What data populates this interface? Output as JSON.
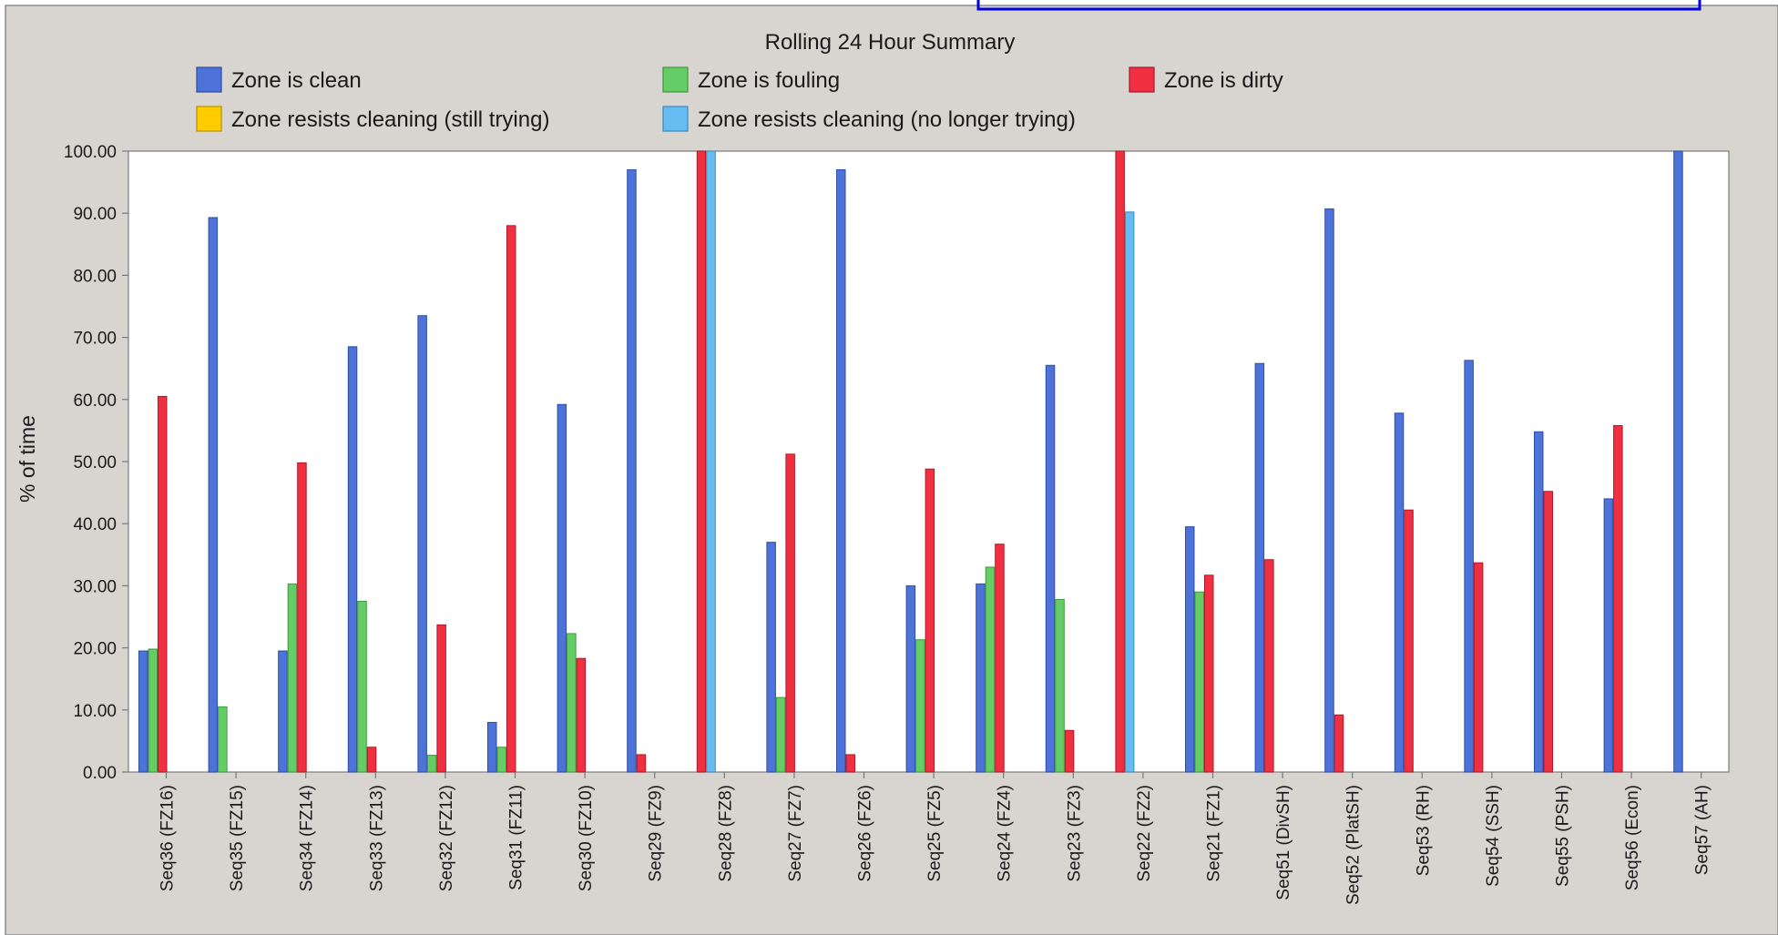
{
  "chart_data": {
    "type": "bar",
    "title": "Rolling 24 Hour Summary",
    "ylabel": "% of time",
    "xlabel": "",
    "ylim": [
      0,
      100
    ],
    "yticks": [
      "0.00",
      "10.00",
      "20.00",
      "30.00",
      "40.00",
      "50.00",
      "60.00",
      "70.00",
      "80.00",
      "90.00",
      "100.00"
    ],
    "grid": false,
    "legend_position": "top",
    "categories": [
      "Seq36 (FZ16)",
      "Seq35 (FZ15)",
      "Seq34 (FZ14)",
      "Seq33 (FZ13)",
      "Seq32 (FZ12)",
      "Seq31 (FZ11)",
      "Seq30 (FZ10)",
      "Seq29 (FZ9)",
      "Seq28 (FZ8)",
      "Seq27 (FZ7)",
      "Seq26 (FZ6)",
      "Seq25 (FZ5)",
      "Seq24 (FZ4)",
      "Seq23 (FZ3)",
      "Seq22 (FZ2)",
      "Seq21 (FZ1)",
      "Seq51 (DivSH)",
      "Seq52 (PlatSH)",
      "Seq53 (RH)",
      "Seq54 (SSH)",
      "Seq55 (PSH)",
      "Seq56 (Econ)",
      "Seq57 (AH)"
    ],
    "series": [
      {
        "name": "Zone is clean",
        "color": "#4d72d8",
        "stroke": "#2c4ea8",
        "values": [
          19.5,
          89.3,
          19.5,
          68.5,
          73.5,
          8.0,
          59.2,
          97.0,
          0,
          37.0,
          97.0,
          30.0,
          30.3,
          65.5,
          0,
          39.5,
          65.8,
          90.7,
          57.8,
          66.3,
          54.8,
          44.0,
          100.0
        ]
      },
      {
        "name": "Zone is fouling",
        "color": "#66cc66",
        "stroke": "#3e9a3e",
        "values": [
          19.8,
          10.5,
          30.3,
          27.5,
          2.7,
          4.0,
          22.3,
          0,
          0,
          12.0,
          0,
          21.3,
          33.0,
          27.8,
          0,
          29.0,
          0,
          0,
          0,
          0,
          0,
          0,
          0
        ]
      },
      {
        "name": "Zone is dirty",
        "color": "#f03040",
        "stroke": "#b01828",
        "values": [
          60.5,
          0,
          49.8,
          4.0,
          23.7,
          88.0,
          18.3,
          2.8,
          100.0,
          51.2,
          2.8,
          48.8,
          36.7,
          6.7,
          100.0,
          31.7,
          34.2,
          9.2,
          42.2,
          33.7,
          45.2,
          55.8,
          0
        ]
      },
      {
        "name": "Zone resists cleaning (still trying)",
        "color": "#ffcc00",
        "stroke": "#b89000",
        "values": [
          0,
          0,
          0,
          0,
          0,
          0,
          0,
          0,
          0,
          0,
          0,
          0,
          0,
          0,
          0,
          0,
          0,
          0,
          0,
          0,
          0,
          0,
          0
        ]
      },
      {
        "name": "Zone resists cleaning (no longer trying)",
        "color": "#66bbf0",
        "stroke": "#3a8ac0",
        "values": [
          0,
          0,
          0,
          0,
          0,
          0,
          0,
          0,
          100.0,
          0,
          0,
          0,
          0,
          0,
          90.2,
          0,
          0,
          0,
          0,
          0,
          0,
          0,
          0
        ]
      }
    ]
  }
}
